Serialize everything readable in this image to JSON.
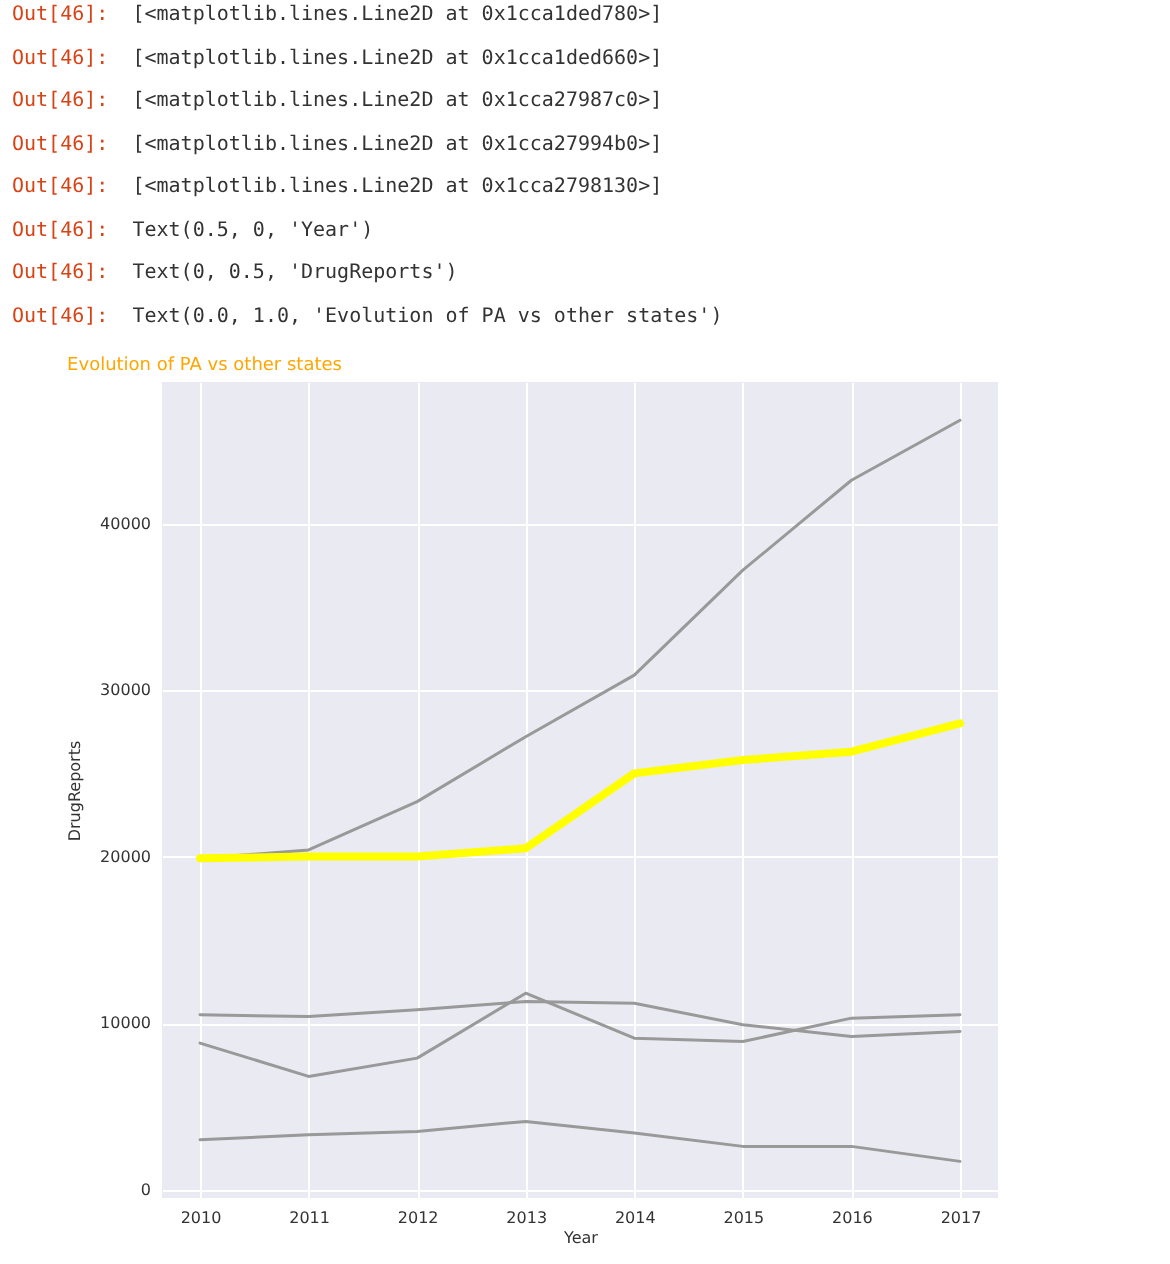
{
  "chart_data": {
    "type": "line",
    "title": "Evolution of PA vs other states",
    "xlabel": "Year",
    "ylabel": "DrugReports",
    "annotations": [
      "Out[46]:  [<matplotlib.lines.Line2D at 0x1cca1ded780>]",
      "Out[46]:  [<matplotlib.lines.Line2D at 0x1cca1ded660>]",
      "Out[46]:  [<matplotlib.lines.Line2D at 0x1cca27987c0>]",
      "Out[46]:  [<matplotlib.lines.Line2D at 0x1cca27994b0>]",
      "Out[46]:  [<matplotlib.lines.Line2D at 0x1cca2798130>]",
      "Out[46]:  Text(0.5, 0, 'Year')",
      "Out[46]:  Text(0, 0.5, 'DrugReports')",
      "Out[46]:  Text(0.0, 1.0, 'Evolution of PA vs other states')"
    ],
    "x": [
      2010,
      2011,
      2012,
      2013,
      2014,
      2015,
      2016,
      2017
    ],
    "series": [
      {
        "color": "#999999",
        "values": [
          19900,
          20400,
          23300,
          27200,
          30900,
          37200,
          42600,
          46200
        ]
      },
      {
        "color": "#999999",
        "values": [
          10500,
          10400,
          10800,
          11300,
          11200,
          9900,
          9200,
          9500
        ]
      },
      {
        "color": "#999999",
        "values": [
          8800,
          6800,
          7900,
          11800,
          9100,
          8900,
          10300,
          10500
        ]
      },
      {
        "color": "#999999",
        "values": [
          3000,
          3300,
          3500,
          4100,
          3400,
          2600,
          2600,
          1700
        ]
      },
      {
        "color": "#ffff00",
        "values": [
          19900,
          20000,
          20000,
          20500,
          25000,
          25800,
          26300,
          28000
        ]
      }
    ],
    "xlim": [
      2009.65,
      2017.35
    ],
    "xticks": [
      2010,
      2011,
      2012,
      2013,
      2014,
      2015,
      2016,
      2017
    ],
    "ylim": [
      -500,
      48500
    ],
    "yticks": [
      0,
      10000,
      20000,
      30000,
      40000
    ],
    "grid": true,
    "marker": "none",
    "line_style": "solid"
  }
}
